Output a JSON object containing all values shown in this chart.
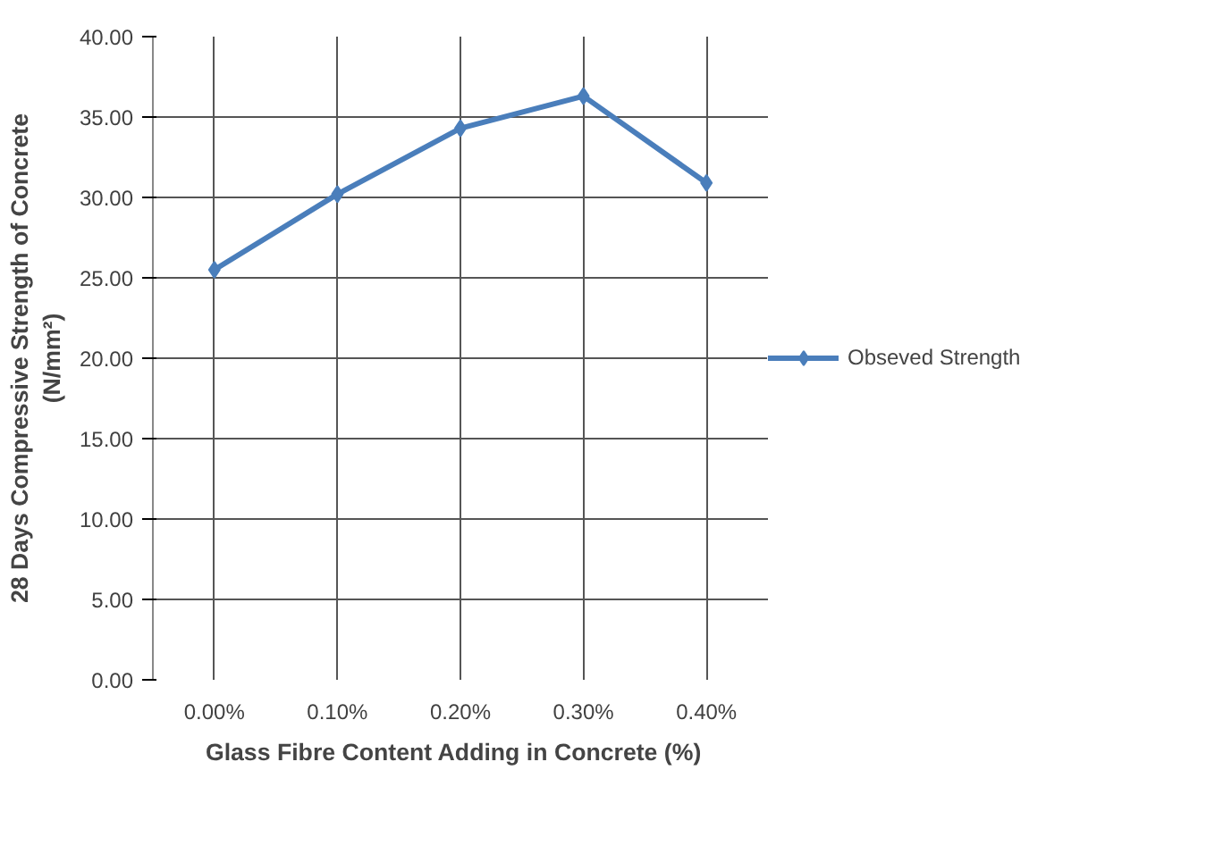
{
  "chart_data": {
    "type": "line",
    "xlabel": "Glass  Fibre Content  Adding in Concrete (%)",
    "ylabel": "28 Days Compressive Strength of Concrete\n(N/mm²)",
    "categories": [
      "0.00%",
      "0.10%",
      "0.20%",
      "0.30%",
      "0.40%"
    ],
    "series": [
      {
        "name": "Obseved Strength",
        "color": "#4a7ebb",
        "values": [
          25.5,
          30.2,
          34.3,
          36.3,
          30.9
        ]
      }
    ],
    "ylim": [
      0,
      40
    ],
    "yticks": [
      {
        "value": 0,
        "label": "0.00"
      },
      {
        "value": 5,
        "label": "5.00"
      },
      {
        "value": 10,
        "label": "10.00"
      },
      {
        "value": 15,
        "label": "15.00"
      },
      {
        "value": 20,
        "label": "20.00"
      },
      {
        "value": 25,
        "label": "25.00"
      },
      {
        "value": 30,
        "label": "30.00"
      },
      {
        "value": 35,
        "label": "35.00"
      },
      {
        "value": 40,
        "label": "40.00"
      }
    ],
    "grid": true,
    "legend": "right",
    "marker": "diamond",
    "line_style": "solid"
  }
}
